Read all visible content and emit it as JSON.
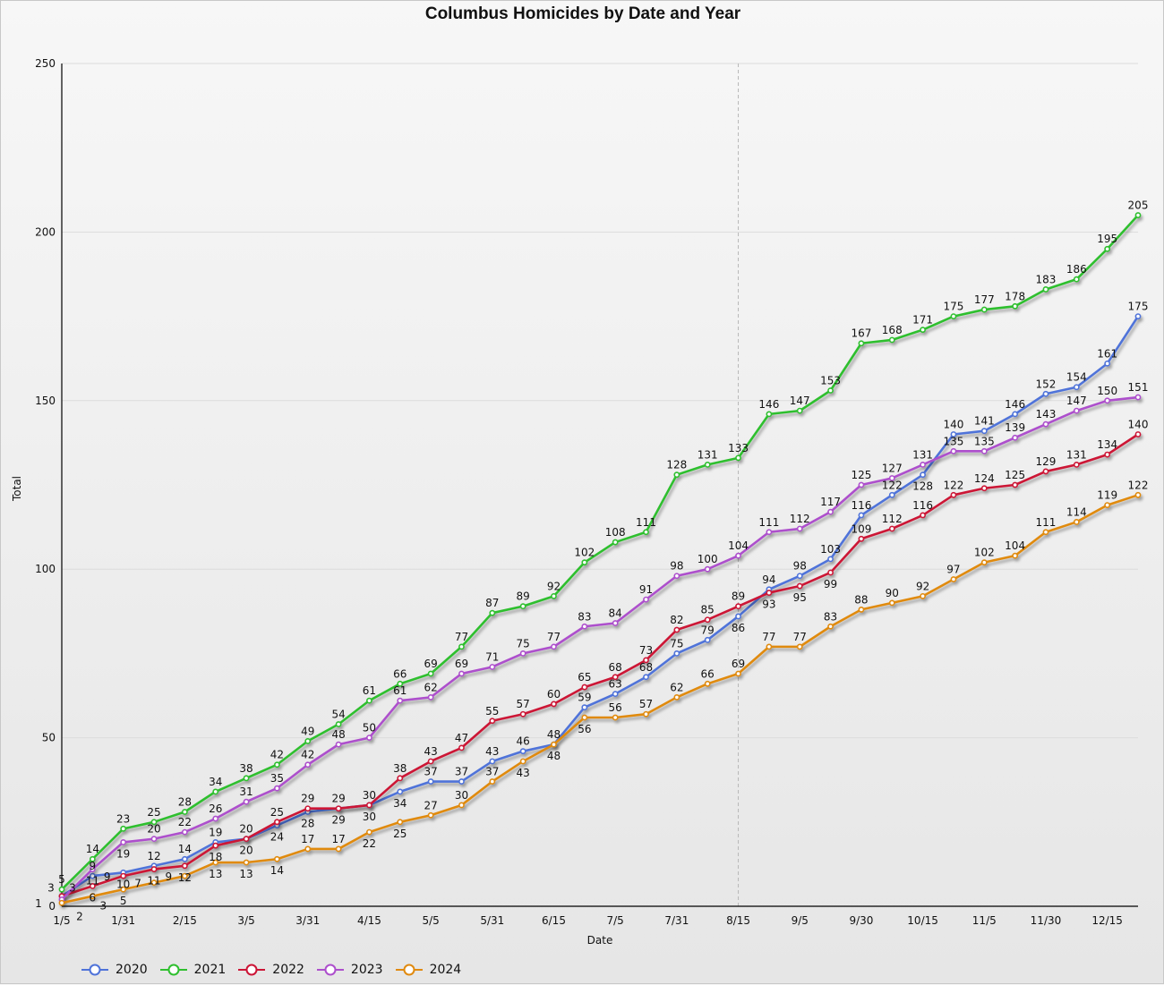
{
  "chart_data": {
    "type": "line",
    "title": "Columbus Homicides by Date and Year",
    "xlabel": "Date",
    "ylabel": "Total",
    "ylim": [
      0,
      250
    ],
    "yticks": [
      0,
      50,
      100,
      150,
      200,
      250
    ],
    "grid": true,
    "legend_position": "bottom-left",
    "reference_line_at": "8/15",
    "categories": [
      "1/5",
      "",
      "1/31",
      "",
      "2/15",
      "",
      "3/5",
      "",
      "3/31",
      "",
      "4/15",
      "",
      "5/5",
      "",
      "5/31",
      "",
      "6/15",
      "",
      "7/5",
      "",
      "7/31",
      "",
      "8/15",
      "",
      "9/5",
      "",
      "9/30",
      "",
      "10/15",
      "",
      "11/5",
      "",
      "11/30",
      "",
      "12/15",
      ""
    ],
    "series": [
      {
        "name": "2020",
        "color": "#4f73d9",
        "values": [
          3,
          9,
          10,
          12,
          14,
          19,
          20,
          24,
          28,
          29,
          30,
          34,
          37,
          37,
          43,
          46,
          48,
          59,
          63,
          68,
          75,
          79,
          86,
          94,
          98,
          103,
          116,
          122,
          128,
          140,
          141,
          146,
          152,
          154,
          161,
          175
        ]
      },
      {
        "name": "2021",
        "color": "#2fbf2f",
        "values": [
          5,
          14,
          23,
          25,
          28,
          34,
          38,
          42,
          49,
          54,
          61,
          66,
          69,
          77,
          87,
          89,
          92,
          102,
          108,
          111,
          128,
          131,
          133,
          146,
          147,
          153,
          167,
          168,
          171,
          175,
          177,
          178,
          183,
          186,
          195,
          205
        ]
      },
      {
        "name": "2022",
        "color": "#cc1536",
        "values": [
          3,
          6,
          9,
          11,
          12,
          18,
          20,
          25,
          29,
          29,
          30,
          38,
          43,
          47,
          55,
          57,
          60,
          65,
          68,
          73,
          82,
          85,
          89,
          93,
          95,
          99,
          109,
          112,
          116,
          122,
          124,
          125,
          129,
          131,
          134,
          140
        ]
      },
      {
        "name": "2023",
        "color": "#ad4fcc",
        "values": [
          2,
          11,
          19,
          20,
          22,
          26,
          31,
          35,
          42,
          48,
          50,
          61,
          62,
          69,
          71,
          75,
          77,
          83,
          84,
          91,
          98,
          100,
          104,
          111,
          112,
          117,
          125,
          127,
          131,
          135,
          135,
          139,
          143,
          147,
          150,
          151
        ]
      },
      {
        "name": "2024",
        "color": "#e08a10",
        "values": [
          1,
          3,
          5,
          7,
          9,
          13,
          13,
          14,
          17,
          17,
          22,
          25,
          27,
          30,
          37,
          43,
          48,
          56,
          56,
          57,
          62,
          66,
          69,
          77,
          77,
          83,
          88,
          90,
          92,
          97,
          102,
          104,
          111,
          114,
          119,
          122
        ]
      }
    ]
  }
}
